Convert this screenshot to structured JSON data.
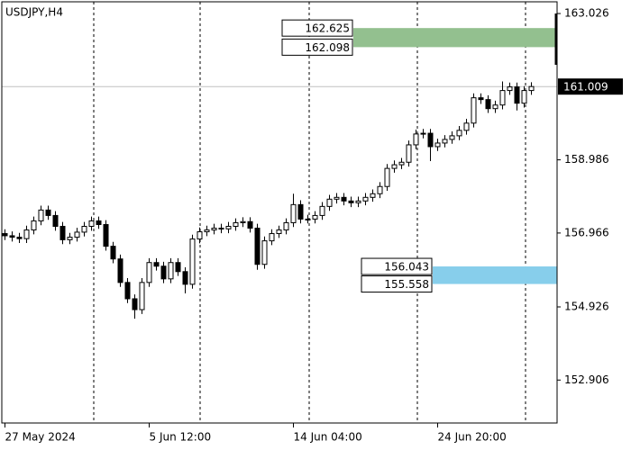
{
  "chart_data": {
    "type": "candlestick",
    "title": "USDJPY,H4",
    "categories": [
      "27 May 2024",
      null,
      null,
      null,
      null,
      null,
      null,
      null,
      null,
      null,
      null,
      null,
      null,
      null,
      null,
      null,
      null,
      null,
      null,
      null,
      "5 Jun 12:00",
      null,
      null,
      null,
      null,
      null,
      null,
      null,
      null,
      null,
      null,
      null,
      null,
      null,
      null,
      null,
      null,
      null,
      null,
      null,
      "14 Jun 04:00",
      null,
      null,
      null,
      null,
      null,
      null,
      null,
      null,
      null,
      null,
      null,
      null,
      null,
      null,
      null,
      null,
      null,
      null,
      null,
      "24 Jun 20:00",
      null,
      null,
      null,
      null,
      null,
      null,
      null,
      null,
      null,
      null,
      null,
      null,
      null
    ],
    "open": [
      156.95,
      156.89,
      156.85,
      156.81,
      157.05,
      157.3,
      157.6,
      157.45,
      157.15,
      156.78,
      156.85,
      156.99,
      157.15,
      157.3,
      157.2,
      156.6,
      156.25,
      155.6,
      155.15,
      154.85,
      155.6,
      156.15,
      156.05,
      155.7,
      156.15,
      155.9,
      155.55,
      156.8,
      157.0,
      157.05,
      157.1,
      157.08,
      157.15,
      157.25,
      157.28,
      157.1,
      156.1,
      156.75,
      156.95,
      157.05,
      157.25,
      157.75,
      157.35,
      157.35,
      157.45,
      157.7,
      157.9,
      157.95,
      157.85,
      157.8,
      157.85,
      157.95,
      158.05,
      158.25,
      158.75,
      158.85,
      158.92,
      159.4,
      159.7,
      159.72,
      159.35,
      159.45,
      159.55,
      159.65,
      159.8,
      160.0,
      160.7,
      160.65,
      160.4,
      160.5,
      160.9,
      161.0,
      160.55,
      160.9
    ],
    "high": [
      157.07,
      157.01,
      156.97,
      157.17,
      157.42,
      157.72,
      157.72,
      157.57,
      157.27,
      156.97,
      157.11,
      157.27,
      157.42,
      157.42,
      157.32,
      156.72,
      156.37,
      155.72,
      155.27,
      155.72,
      156.27,
      156.27,
      156.17,
      156.27,
      156.27,
      156.02,
      156.92,
      157.12,
      157.17,
      157.22,
      157.22,
      157.27,
      157.37,
      157.4,
      157.4,
      157.22,
      156.87,
      157.07,
      157.17,
      157.37,
      158.05,
      157.87,
      157.47,
      157.57,
      157.82,
      158.02,
      158.07,
      158.07,
      157.97,
      157.97,
      158.07,
      158.17,
      158.37,
      158.87,
      158.97,
      159.04,
      159.52,
      159.82,
      159.84,
      159.84,
      159.57,
      159.67,
      159.77,
      159.92,
      160.12,
      160.82,
      160.82,
      160.77,
      160.62,
      161.15,
      161.12,
      161.12,
      161.02,
      161.13
    ],
    "low": [
      156.77,
      156.73,
      156.69,
      156.69,
      156.93,
      157.18,
      157.33,
      157.03,
      156.66,
      156.66,
      156.73,
      156.87,
      157.03,
      157.08,
      156.48,
      156.13,
      155.48,
      155.03,
      154.6,
      154.73,
      155.48,
      155.93,
      155.58,
      155.58,
      155.78,
      155.3,
      155.43,
      156.68,
      156.88,
      156.93,
      156.96,
      156.96,
      157.03,
      157.13,
      156.98,
      155.95,
      155.98,
      156.63,
      156.83,
      156.93,
      157.13,
      157.23,
      157.23,
      157.23,
      157.33,
      157.58,
      157.78,
      157.73,
      157.68,
      157.68,
      157.73,
      157.83,
      157.93,
      158.13,
      158.63,
      158.73,
      158.8,
      159.28,
      159.58,
      158.95,
      159.23,
      159.33,
      159.43,
      159.53,
      159.68,
      159.88,
      160.53,
      160.28,
      160.28,
      160.38,
      160.78,
      160.35,
      160.43,
      160.78
    ],
    "close": [
      156.89,
      156.85,
      156.81,
      157.05,
      157.3,
      157.6,
      157.45,
      157.15,
      156.78,
      156.85,
      156.99,
      157.15,
      157.3,
      157.2,
      156.6,
      156.25,
      155.6,
      155.15,
      154.85,
      155.6,
      156.15,
      156.05,
      155.7,
      156.15,
      155.9,
      155.55,
      156.8,
      157.0,
      157.05,
      157.1,
      157.08,
      157.15,
      157.25,
      157.28,
      157.1,
      156.1,
      156.75,
      156.95,
      157.05,
      157.25,
      157.75,
      157.35,
      157.35,
      157.45,
      157.7,
      157.9,
      157.95,
      157.85,
      157.8,
      157.85,
      157.95,
      158.05,
      158.25,
      158.75,
      158.85,
      158.92,
      159.4,
      159.7,
      159.72,
      159.35,
      159.45,
      159.55,
      159.65,
      159.8,
      160.0,
      160.7,
      160.65,
      160.4,
      160.5,
      160.9,
      161.0,
      160.55,
      160.9,
      161.01
    ],
    "ylim": [
      151.72,
      163.35
    ],
    "yticks": [
      163.026,
      158.986,
      156.966,
      154.926,
      152.906
    ],
    "current_price": 161.009,
    "zones": [
      {
        "top": 162.625,
        "bottom": 162.098,
        "color": "#93c08f"
      },
      {
        "top": 156.043,
        "bottom": 155.558,
        "color": "#87ceeb"
      }
    ]
  }
}
